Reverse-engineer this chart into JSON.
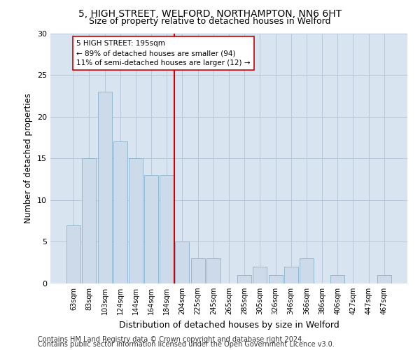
{
  "title1": "5, HIGH STREET, WELFORD, NORTHAMPTON, NN6 6HT",
  "title2": "Size of property relative to detached houses in Welford",
  "xlabel": "Distribution of detached houses by size in Welford",
  "ylabel": "Number of detached properties",
  "categories": [
    "63sqm",
    "83sqm",
    "103sqm",
    "124sqm",
    "144sqm",
    "164sqm",
    "184sqm",
    "204sqm",
    "225sqm",
    "245sqm",
    "265sqm",
    "285sqm",
    "305sqm",
    "326sqm",
    "346sqm",
    "366sqm",
    "386sqm",
    "406sqm",
    "427sqm",
    "447sqm",
    "467sqm"
  ],
  "bar_values": [
    7,
    15,
    23,
    17,
    15,
    13,
    13,
    5,
    3,
    3,
    0,
    1,
    2,
    1,
    2,
    3,
    0,
    1,
    0,
    0,
    1
  ],
  "bar_color": "#ccdaea",
  "bar_edge_color": "#8ab4cc",
  "vline_x": 7,
  "vline_color": "#cc0000",
  "annotation_text": "5 HIGH STREET: 195sqm\n← 89% of detached houses are smaller (94)\n11% of semi-detached houses are larger (12) →",
  "annotation_box_color": "#ffffff",
  "annotation_box_edge": "#cc0000",
  "grid_color": "#b8c8d8",
  "background_color": "#d8e4f0",
  "footer1": "Contains HM Land Registry data © Crown copyright and database right 2024.",
  "footer2": "Contains public sector information licensed under the Open Government Licence v3.0.",
  "ylim": [
    0,
    30
  ],
  "title1_fontsize": 10,
  "title2_fontsize": 9,
  "xlabel_fontsize": 9,
  "ylabel_fontsize": 8.5,
  "footer_fontsize": 7,
  "tick_fontsize": 7,
  "annot_fontsize": 7.5
}
